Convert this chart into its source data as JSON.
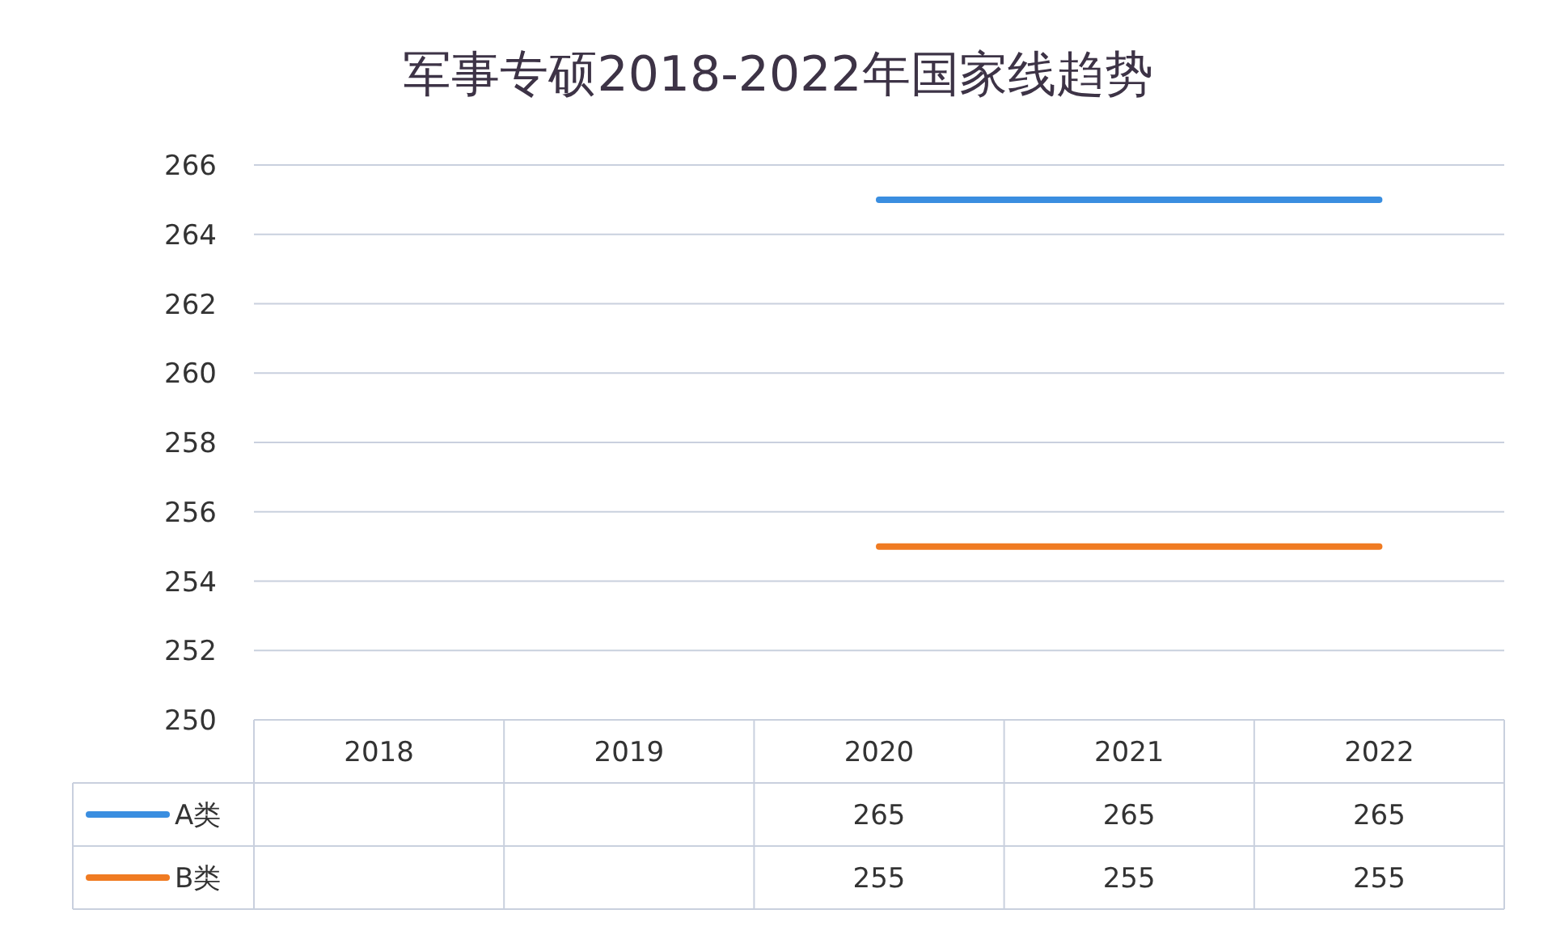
{
  "chart_data": {
    "type": "line",
    "title": "军事专硕2018-2022年国家线趋势",
    "categories": [
      "2018",
      "2019",
      "2020",
      "2021",
      "2022"
    ],
    "series": [
      {
        "name": "A类",
        "color": "#3a8ee0",
        "values": [
          null,
          null,
          265,
          265,
          265
        ]
      },
      {
        "name": "B类",
        "color": "#f07b22",
        "values": [
          null,
          null,
          255,
          255,
          255
        ]
      }
    ],
    "ylim": [
      250,
      266
    ],
    "yticks": [
      250,
      252,
      254,
      256,
      258,
      260,
      262,
      264,
      266
    ],
    "grid": "y",
    "data_labels": true,
    "legend": "bottom"
  }
}
